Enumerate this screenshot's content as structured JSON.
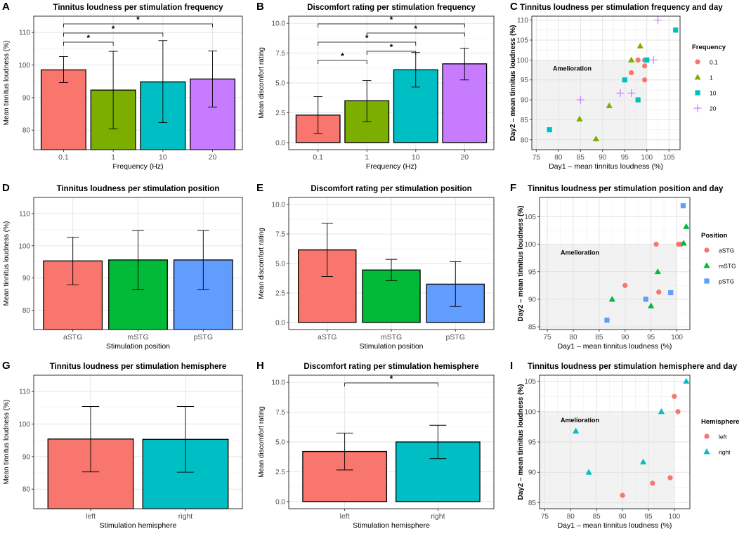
{
  "chart_data": [
    {
      "panel": "A",
      "type": "bar",
      "title": "Tinnitus loudness per stimulation frequency",
      "xlabel": "Frequency (Hz)",
      "ylabel": "Mean tinnitus loudness (%)",
      "categories": [
        "0.1",
        "1",
        "10",
        "20"
      ],
      "values": [
        98.5,
        92.3,
        94.8,
        95.7
      ],
      "err_low": [
        94.6,
        80.4,
        82.3,
        87.1
      ],
      "err_high": [
        102.6,
        104.2,
        107.5,
        104.3
      ],
      "colors": [
        "#F8766D",
        "#7CAE00",
        "#00BFC4",
        "#C77CFF"
      ],
      "ylim": [
        74,
        115
      ],
      "yticks": [
        80,
        90,
        100,
        110
      ],
      "sig": [
        {
          "from": 0,
          "to": 1,
          "label": "*"
        },
        {
          "from": 0,
          "to": 2,
          "label": "*"
        },
        {
          "from": 0,
          "to": 3,
          "label": "*"
        }
      ]
    },
    {
      "panel": "B",
      "type": "bar",
      "title": "Discomfort rating per stimulation frequency",
      "xlabel": "Frequency (Hz)",
      "ylabel": "Mean discomfort rating",
      "categories": [
        "0.1",
        "1",
        "10",
        "20"
      ],
      "values": [
        2.3,
        3.5,
        6.1,
        6.6
      ],
      "err_low": [
        0.75,
        1.75,
        4.65,
        5.25
      ],
      "err_high": [
        3.85,
        5.2,
        7.55,
        7.9
      ],
      "colors": [
        "#F8766D",
        "#7CAE00",
        "#00BFC4",
        "#C77CFF"
      ],
      "ylim": [
        -0.6,
        10.6
      ],
      "yticks": [
        0.0,
        2.5,
        5.0,
        7.5,
        10.0
      ],
      "sig": [
        {
          "from": 0,
          "to": 1,
          "label": "*"
        },
        {
          "from": 1,
          "to": 2,
          "label": "*"
        },
        {
          "from": 0,
          "to": 2,
          "label": "*"
        },
        {
          "from": 1,
          "to": 3,
          "label": "*"
        },
        {
          "from": 0,
          "to": 3,
          "label": "*"
        }
      ]
    },
    {
      "panel": "C",
      "type": "scatter",
      "title": "Tinnitus loudness per stimulation frequency and day",
      "xlabel": "Day1 – mean tinnitus loudness (%)",
      "ylabel": "Day2 – mean tinnitus loudness (%)",
      "annotation": "Amelioration",
      "legend_title": "Frequency",
      "xlim": [
        74,
        107.5
      ],
      "xticks": [
        75,
        80,
        85,
        90,
        95,
        100,
        105
      ],
      "ylim": [
        77.5,
        111
      ],
      "yticks": [
        80,
        85,
        90,
        95,
        100,
        105,
        110
      ],
      "series": [
        {
          "name": "0.1",
          "color": "#F8766D",
          "shape": "circle",
          "x": [
            96.5,
            98,
            99.5,
            99.5,
            99.5
          ],
          "y": [
            96.8,
            100,
            98.5,
            100,
            95
          ]
        },
        {
          "name": "1",
          "color": "#7CAE00",
          "shape": "triangle",
          "x": [
            96.5,
            98.5,
            91.5,
            84.8,
            88.5
          ],
          "y": [
            100,
            103.5,
            88.5,
            85.2,
            80.2
          ]
        },
        {
          "name": "10",
          "color": "#00BFC4",
          "shape": "square",
          "x": [
            78,
            95,
            98,
            100,
            106.5
          ],
          "y": [
            82.5,
            95,
            90,
            100,
            107.5
          ]
        },
        {
          "name": "20",
          "color": "#C77CFF",
          "shape": "plus",
          "x": [
            85,
            94,
            96.5,
            101.5,
            102.5
          ],
          "y": [
            90,
            91.7,
            91.7,
            100,
            110
          ]
        }
      ]
    },
    {
      "panel": "D",
      "type": "bar",
      "title": "Tinnitus loudness per stimulation position",
      "xlabel": "Stimulation position",
      "ylabel": "Mean tinnitus loudness (%)",
      "categories": [
        "aSTG",
        "mSTG",
        "pSTG"
      ],
      "values": [
        95.3,
        95.6,
        95.6
      ],
      "err_low": [
        87.9,
        86.4,
        86.4
      ],
      "err_high": [
        102.6,
        104.7,
        104.7
      ],
      "colors": [
        "#F8766D",
        "#00BA38",
        "#619CFF"
      ],
      "ylim": [
        74,
        115
      ],
      "yticks": [
        80,
        90,
        100,
        110
      ],
      "sig": []
    },
    {
      "panel": "E",
      "type": "bar",
      "title": "Discomfort rating per stimulation position",
      "xlabel": "Stimulation position",
      "ylabel": "Mean discomfort rating",
      "categories": [
        "aSTG",
        "mSTG",
        "pSTG"
      ],
      "values": [
        6.15,
        4.45,
        3.25
      ],
      "err_low": [
        3.9,
        3.55,
        1.35
      ],
      "err_high": [
        8.4,
        5.35,
        5.15
      ],
      "colors": [
        "#F8766D",
        "#00BA38",
        "#619CFF"
      ],
      "ylim": [
        -0.6,
        10.6
      ],
      "yticks": [
        0.0,
        2.5,
        5.0,
        7.5,
        10.0
      ],
      "sig": []
    },
    {
      "panel": "F",
      "type": "scatter",
      "title": "Tinnitus loudness per stimulation position and day",
      "xlabel": "Day1 – mean tinnitus loudness (%)",
      "ylabel": "Day2 – mean tinnitus loudness (%)",
      "annotation": "Amelioration",
      "legend_title": "Position",
      "xlim": [
        73.5,
        102.5
      ],
      "xticks": [
        75,
        80,
        85,
        90,
        95,
        100
      ],
      "ylim": [
        84.5,
        108.5
      ],
      "yticks": [
        85,
        90,
        95,
        100,
        105
      ],
      "series": [
        {
          "name": "aSTG",
          "color": "#F8766D",
          "shape": "circle",
          "x": [
            90,
            96,
            96.5,
            100.3,
            100.8
          ],
          "y": [
            92.5,
            100,
            91.3,
            100,
            100
          ]
        },
        {
          "name": "mSTG",
          "color": "#00BA38",
          "shape": "triangle",
          "x": [
            87.5,
            95,
            96.3,
            101.3,
            101.8
          ],
          "y": [
            90,
            88.8,
            95,
            100.2,
            103.2
          ]
        },
        {
          "name": "pSTG",
          "color": "#619CFF",
          "shape": "square",
          "x": [
            86.5,
            94,
            98.8,
            101.2
          ],
          "y": [
            86.2,
            90,
            91.2,
            107
          ]
        }
      ]
    },
    {
      "panel": "G",
      "type": "bar",
      "title": "Tinnitus loudness per stimulation hemisphere",
      "xlabel": "Stimulation hemisphere",
      "ylabel": "Mean tinnitus loudness (%)",
      "categories": [
        "left",
        "right"
      ],
      "values": [
        95.4,
        95.3
      ],
      "err_low": [
        85.3,
        85.2
      ],
      "err_high": [
        105.4,
        105.4
      ],
      "colors": [
        "#F8766D",
        "#00BFC4"
      ],
      "ylim": [
        74,
        115
      ],
      "yticks": [
        80,
        90,
        100,
        110
      ],
      "sig": []
    },
    {
      "panel": "H",
      "type": "bar",
      "title": "Discomfort rating per stimulation hemisphere",
      "xlabel": "Stimulation hemisphere",
      "ylabel": "Mean discomfort rating",
      "categories": [
        "left",
        "right"
      ],
      "values": [
        4.2,
        5.0
      ],
      "err_low": [
        2.65,
        3.6
      ],
      "err_high": [
        5.75,
        6.4
      ],
      "colors": [
        "#F8766D",
        "#00BFC4"
      ],
      "ylim": [
        -0.6,
        10.6
      ],
      "yticks": [
        0.0,
        2.5,
        5.0,
        7.5,
        10.0
      ],
      "sig": [
        {
          "from": 0,
          "to": 1,
          "label": "*"
        }
      ]
    },
    {
      "panel": "I",
      "type": "scatter",
      "title": "Tinnitus loudness per stimulation hemisphere and day",
      "xlabel": "Day1 – mean tinnitus loudness (%)",
      "ylabel": "Day2 – mean tinnitus loudness (%)",
      "annotation": "Amelioration",
      "legend_title": "Hemisphere",
      "xlim": [
        74,
        103
      ],
      "xticks": [
        75,
        80,
        85,
        90,
        95,
        100
      ],
      "ylim": [
        84,
        106
      ],
      "yticks": [
        85,
        90,
        95,
        100,
        105
      ],
      "series": [
        {
          "name": "left",
          "color": "#F8766D",
          "shape": "circle",
          "x": [
            90,
            95.8,
            99.2,
            100,
            100.7
          ],
          "y": [
            86.2,
            88.2,
            89.1,
            102.5,
            100
          ]
        },
        {
          "name": "right",
          "color": "#00BFC4",
          "shape": "triangle",
          "x": [
            81,
            83.5,
            94,
            97.5,
            102.3
          ],
          "y": [
            96.8,
            90,
            91.7,
            100,
            105
          ]
        }
      ]
    }
  ]
}
